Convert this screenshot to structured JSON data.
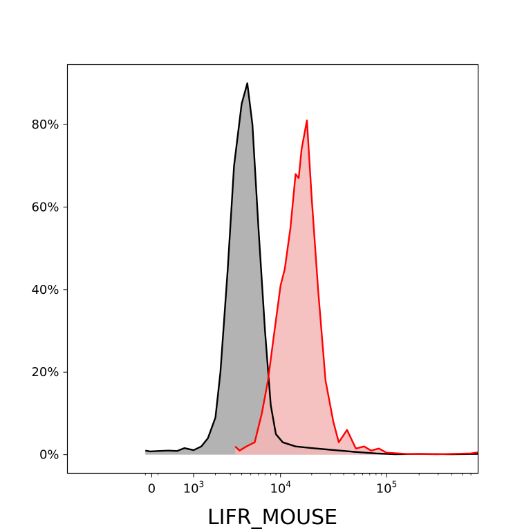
{
  "chart_data": {
    "type": "area",
    "title": "",
    "xlabel": "LIFR_MOUSE",
    "ylabel": "",
    "x_scale": "biexponential",
    "x_ticks": [
      {
        "value": 0,
        "base": "0",
        "exp": ""
      },
      {
        "value": 1000,
        "base": "10",
        "exp": "3"
      },
      {
        "value": 10000,
        "base": "10",
        "exp": "4"
      },
      {
        "value": 100000,
        "base": "10",
        "exp": "5"
      }
    ],
    "y_ticks": [
      "0%",
      "20%",
      "40%",
      "60%",
      "80%"
    ],
    "ylim": [
      -4.5,
      94.5
    ],
    "grid": false,
    "legend": "none",
    "series": [
      {
        "color": "#000000",
        "fill": "#b3b3b3",
        "points": [
          [
            -100,
            1.0
          ],
          [
            -20,
            0.8
          ],
          [
            100,
            0.9
          ],
          [
            300,
            1.0
          ],
          [
            500,
            0.9
          ],
          [
            700,
            1.6
          ],
          [
            1000,
            1.1
          ],
          [
            1300,
            2.0
          ],
          [
            1600,
            4.0
          ],
          [
            2000,
            9.0
          ],
          [
            2300,
            20.0
          ],
          [
            2800,
            45.0
          ],
          [
            3300,
            70.0
          ],
          [
            4000,
            85.0
          ],
          [
            4600,
            90.0
          ],
          [
            5200,
            80.0
          ],
          [
            6000,
            55.0
          ],
          [
            7000,
            30.0
          ],
          [
            8000,
            12.0
          ],
          [
            9000,
            5.0
          ],
          [
            10500,
            3.0
          ],
          [
            14000,
            2.0
          ],
          [
            20000,
            1.6
          ],
          [
            30000,
            1.2
          ],
          [
            50000,
            0.7
          ],
          [
            80000,
            0.3
          ],
          [
            120000,
            0.1
          ],
          [
            200000,
            0.2
          ],
          [
            400000,
            0.1
          ],
          [
            900000,
            0.2
          ]
        ]
      },
      {
        "color": "#ff0000",
        "fill": "#f4b6b6",
        "points": [
          [
            3400,
            2.0
          ],
          [
            3800,
            1.0
          ],
          [
            4500,
            2.0
          ],
          [
            5500,
            3.0
          ],
          [
            6500,
            10.0
          ],
          [
            7500,
            18.0
          ],
          [
            8500,
            28.0
          ],
          [
            10000,
            41.0
          ],
          [
            11000,
            45.0
          ],
          [
            12500,
            55.0
          ],
          [
            14000,
            68.0
          ],
          [
            15000,
            67.0
          ],
          [
            16000,
            74.0
          ],
          [
            18000,
            81.0
          ],
          [
            20000,
            62.0
          ],
          [
            23000,
            40.0
          ],
          [
            27000,
            18.0
          ],
          [
            32000,
            8.0
          ],
          [
            36000,
            3.0
          ],
          [
            43000,
            6.0
          ],
          [
            52000,
            1.5
          ],
          [
            62000,
            2.0
          ],
          [
            72000,
            1.0
          ],
          [
            85000,
            1.5
          ],
          [
            100000,
            0.5
          ],
          [
            150000,
            0.2
          ],
          [
            300000,
            0.1
          ],
          [
            600000,
            0.3
          ],
          [
            800000,
            0.8
          ],
          [
            900000,
            1.0
          ]
        ]
      }
    ]
  }
}
